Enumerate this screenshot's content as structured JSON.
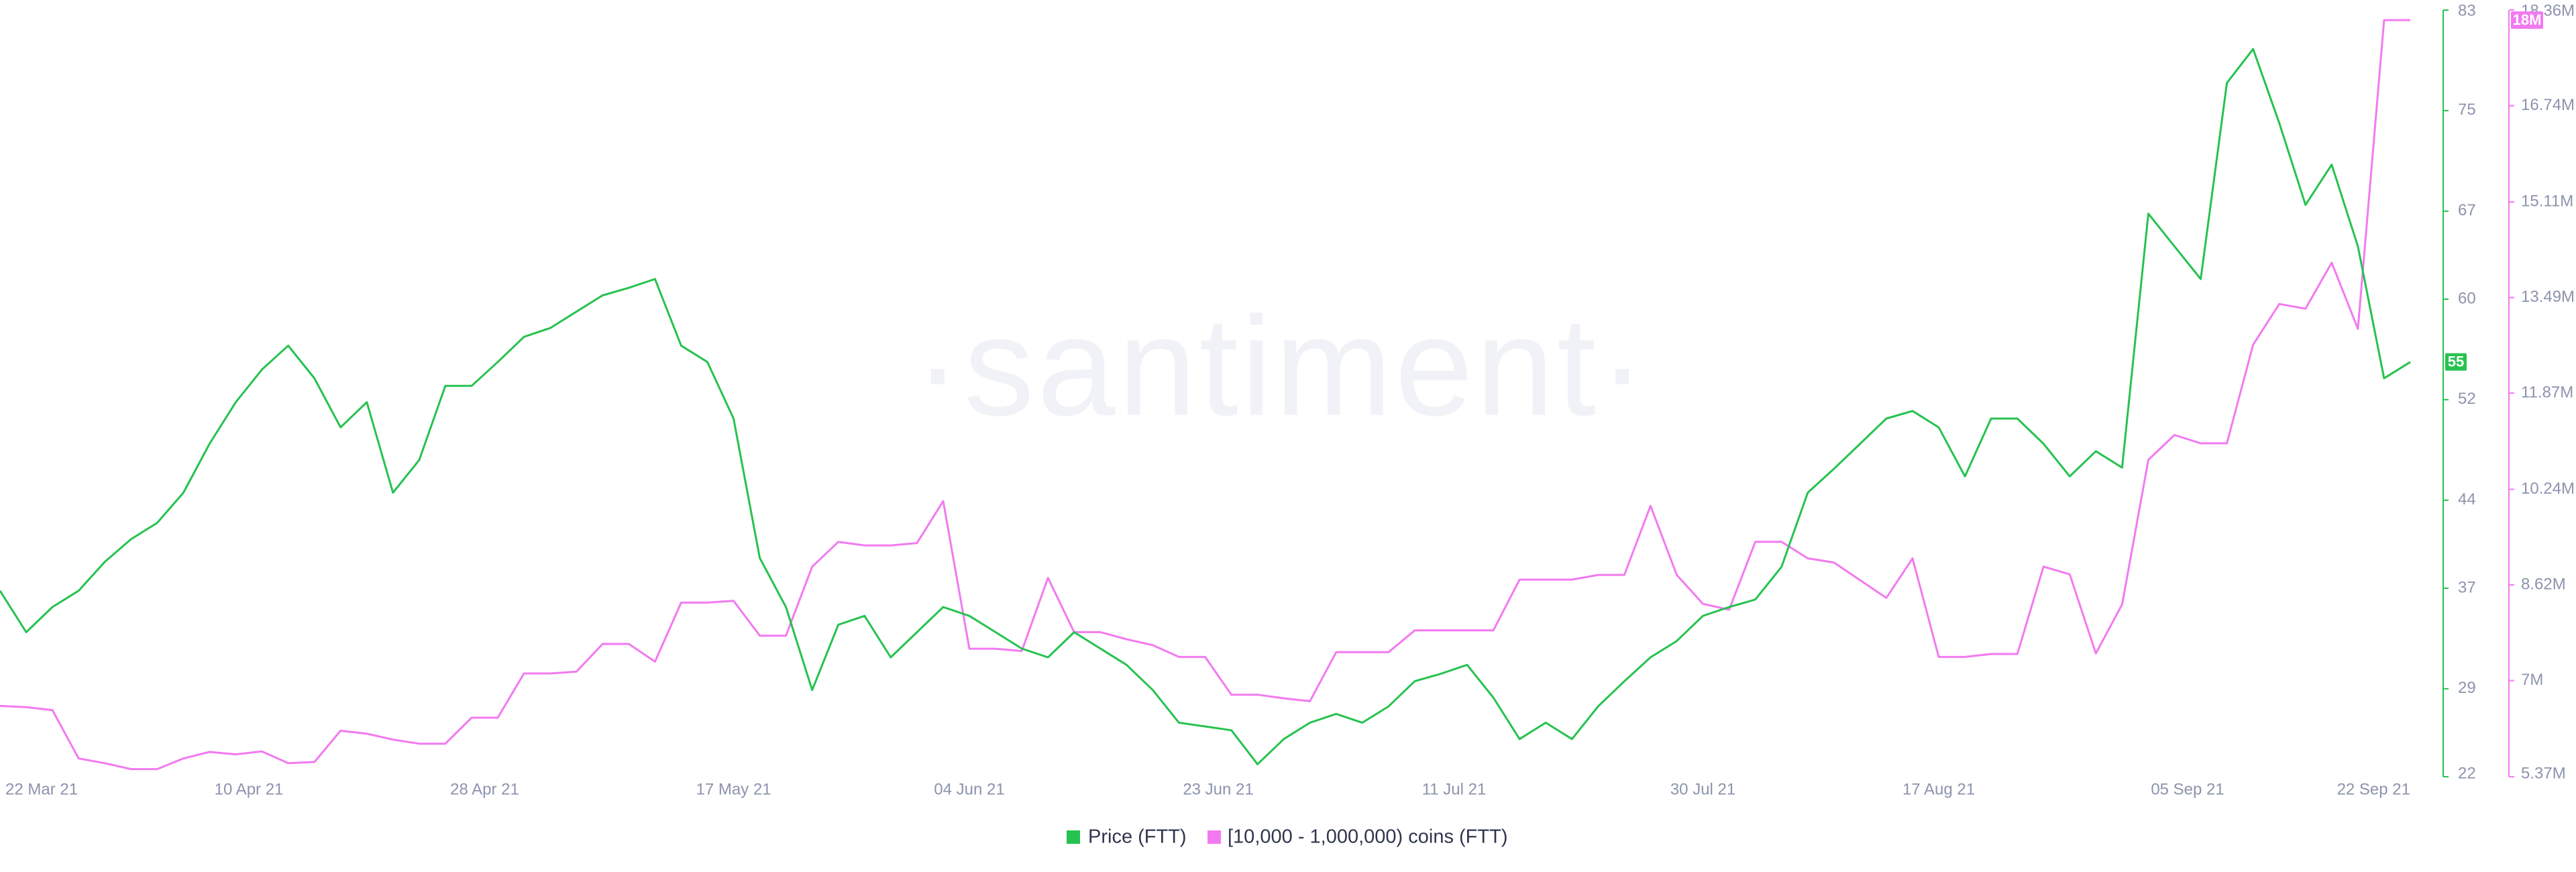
{
  "chart_data": {
    "type": "line",
    "watermark": "·santiment·",
    "x": [
      "2021-03-22",
      "2021-03-24",
      "2021-03-26",
      "2021-03-28",
      "2021-03-30",
      "2021-04-01",
      "2021-04-03",
      "2021-04-05",
      "2021-04-07",
      "2021-04-09",
      "2021-04-11",
      "2021-04-13",
      "2021-04-15",
      "2021-04-17",
      "2021-04-19",
      "2021-04-21",
      "2021-04-23",
      "2021-04-25",
      "2021-04-27",
      "2021-04-29",
      "2021-05-01",
      "2021-05-03",
      "2021-05-05",
      "2021-05-07",
      "2021-05-09",
      "2021-05-11",
      "2021-05-13",
      "2021-05-15",
      "2021-05-17",
      "2021-05-19",
      "2021-05-21",
      "2021-05-23",
      "2021-05-25",
      "2021-05-27",
      "2021-05-29",
      "2021-05-31",
      "2021-06-02",
      "2021-06-04",
      "2021-06-06",
      "2021-06-08",
      "2021-06-10",
      "2021-06-12",
      "2021-06-14",
      "2021-06-16",
      "2021-06-18",
      "2021-06-20",
      "2021-06-22",
      "2021-06-24",
      "2021-06-26",
      "2021-06-28",
      "2021-06-30",
      "2021-07-02",
      "2021-07-04",
      "2021-07-06",
      "2021-07-08",
      "2021-07-10",
      "2021-07-12",
      "2021-07-14",
      "2021-07-16",
      "2021-07-18",
      "2021-07-20",
      "2021-07-22",
      "2021-07-24",
      "2021-07-26",
      "2021-07-28",
      "2021-07-30",
      "2021-08-01",
      "2021-08-03",
      "2021-08-05",
      "2021-08-07",
      "2021-08-09",
      "2021-08-11",
      "2021-08-13",
      "2021-08-15",
      "2021-08-17",
      "2021-08-19",
      "2021-08-21",
      "2021-08-23",
      "2021-08-25",
      "2021-08-27",
      "2021-08-29",
      "2021-08-31",
      "2021-09-02",
      "2021-09-04",
      "2021-09-06",
      "2021-09-08",
      "2021-09-10",
      "2021-09-12",
      "2021-09-14",
      "2021-09-16",
      "2021-09-18",
      "2021-09-20",
      "2021-09-22"
    ],
    "xlim": [
      "2021-03-22",
      "2021-09-22"
    ],
    "xticks": [
      {
        "value": "2021-03-22",
        "label": "22 Mar 21"
      },
      {
        "value": "2021-04-10",
        "label": "10 Apr 21"
      },
      {
        "value": "2021-04-28",
        "label": "28 Apr 21"
      },
      {
        "value": "2021-05-17",
        "label": "17 May 21"
      },
      {
        "value": "2021-06-04",
        "label": "04 Jun 21"
      },
      {
        "value": "2021-06-23",
        "label": "23 Jun 21"
      },
      {
        "value": "2021-07-11",
        "label": "11 Jul 21"
      },
      {
        "value": "2021-07-30",
        "label": "30 Jul 21"
      },
      {
        "value": "2021-08-17",
        "label": "17 Aug 21"
      },
      {
        "value": "2021-09-05",
        "label": "05 Sep 21"
      },
      {
        "value": "2021-09-22",
        "label": "22 Sep 21"
      }
    ],
    "ylim": [
      22,
      83
    ],
    "yticks": [
      22,
      29,
      37,
      44,
      52,
      60,
      67,
      75,
      83
    ],
    "y2lim": [
      5370000,
      18360000
    ],
    "y2ticks": [
      {
        "value": 5370000,
        "label": "5.37M"
      },
      {
        "value": 7000000,
        "label": "7M"
      },
      {
        "value": 8620000,
        "label": "8.62M"
      },
      {
        "value": 10240000,
        "label": "10.24M"
      },
      {
        "value": 11870000,
        "label": "11.87M"
      },
      {
        "value": 13490000,
        "label": "13.49M"
      },
      {
        "value": 15110000,
        "label": "15.11M"
      },
      {
        "value": 16740000,
        "label": "16.74M"
      },
      {
        "value": 18360000,
        "label": "18.36M"
      }
    ],
    "legend": "bottom",
    "series": [
      {
        "name": "Price (FTT)",
        "color": "#26c24f",
        "axis": "y",
        "current_label": "55",
        "values": [
          36.8,
          33.5,
          35.5,
          36.8,
          39.1,
          40.9,
          42.2,
          44.6,
          48.5,
          51.8,
          54.4,
          56.3,
          53.7,
          49.8,
          51.8,
          44.6,
          47.2,
          53.1,
          53.1,
          55.0,
          57.0,
          57.7,
          59.0,
          60.3,
          60.9,
          61.6,
          56.3,
          55.0,
          50.5,
          39.4,
          35.5,
          28.9,
          34.1,
          34.8,
          31.5,
          33.5,
          35.5,
          34.8,
          33.5,
          32.2,
          31.5,
          33.5,
          32.2,
          30.9,
          28.9,
          26.3,
          26.0,
          25.7,
          23.0,
          25.0,
          26.3,
          27.0,
          26.3,
          27.6,
          29.6,
          30.2,
          30.9,
          28.3,
          25.0,
          26.3,
          25.0,
          27.6,
          29.6,
          31.5,
          32.8,
          34.8,
          35.5,
          36.1,
          38.7,
          44.6,
          46.5,
          48.5,
          50.5,
          51.1,
          49.8,
          45.9,
          50.5,
          50.5,
          48.5,
          45.9,
          47.9,
          46.6,
          66.8,
          64.2,
          61.6,
          77.2,
          79.9,
          74.0,
          67.5,
          70.7,
          64.2,
          53.7,
          55.0
        ]
      },
      {
        "name": "[10,000 - 1,000,000) coins (FTT)",
        "color": "#f27af0",
        "axis": "y2",
        "current_label": "18M",
        "values": [
          6570000,
          6550000,
          6500000,
          5680000,
          5600000,
          5500000,
          5500000,
          5680000,
          5790000,
          5750000,
          5800000,
          5600000,
          5620000,
          6150000,
          6100000,
          6000000,
          5930000,
          5930000,
          6370000,
          6370000,
          7120000,
          7120000,
          7150000,
          7620000,
          7620000,
          7320000,
          8320000,
          8320000,
          8350000,
          7760000,
          7760000,
          8930000,
          9350000,
          9290000,
          9290000,
          9330000,
          10040000,
          7540000,
          7540000,
          7500000,
          8740000,
          7820000,
          7820000,
          7700000,
          7600000,
          7400000,
          7400000,
          6760000,
          6760000,
          6700000,
          6650000,
          7480000,
          7480000,
          7480000,
          7850000,
          7850000,
          7850000,
          7850000,
          8710000,
          8710000,
          8710000,
          8790000,
          8790000,
          9960000,
          8790000,
          8300000,
          8200000,
          9350000,
          9350000,
          9070000,
          9000000,
          8700000,
          8400000,
          9070000,
          7400000,
          7400000,
          7450000,
          7450000,
          8930000,
          8800000,
          7460000,
          8290000,
          10740000,
          11160000,
          11020000,
          11020000,
          12690000,
          13380000,
          13300000,
          14080000,
          12960000,
          18190000,
          18190000
        ]
      }
    ]
  }
}
